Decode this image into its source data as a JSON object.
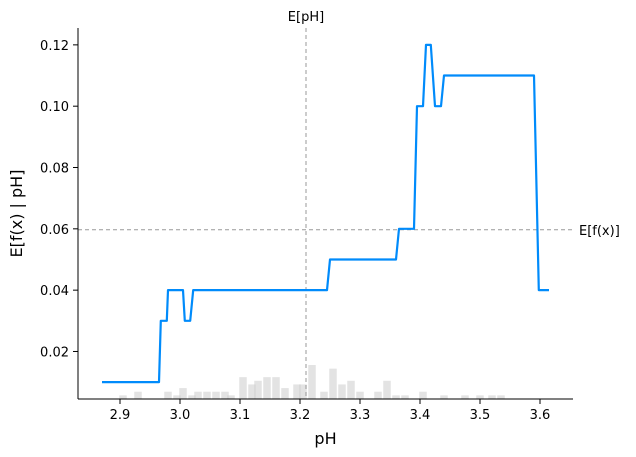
{
  "chart_data": {
    "type": "line",
    "title": "",
    "xlabel": "pH",
    "ylabel": "E[f(x) | pH]",
    "xlim": [
      2.83,
      3.655
    ],
    "ylim": [
      0.0045,
      0.1255
    ],
    "x_ticks": [
      2.9,
      3.0,
      3.1,
      3.2,
      3.3,
      3.4,
      3.5,
      3.6
    ],
    "x_tick_labels": [
      "2.9",
      "3.0",
      "3.1",
      "3.2",
      "3.3",
      "3.4",
      "3.5",
      "3.6"
    ],
    "y_ticks": [
      0.02,
      0.04,
      0.06,
      0.08,
      0.1,
      0.12
    ],
    "y_tick_labels": [
      "0.02",
      "0.04",
      "0.06",
      "0.08",
      "0.10",
      "0.12"
    ],
    "grid": false,
    "line_color": "#008bfb",
    "reference_color": "#999999",
    "histogram_color": "#cccccc",
    "series": [
      {
        "x": [
          2.87,
          2.965,
          2.968,
          2.978,
          2.98,
          2.99,
          3.005,
          3.008,
          3.017,
          3.022,
          3.03,
          3.04,
          3.245,
          3.25,
          3.32,
          3.36,
          3.365,
          3.37,
          3.39,
          3.395,
          3.405,
          3.41,
          3.418,
          3.425,
          3.435,
          3.44,
          3.45,
          3.59,
          3.598,
          3.605,
          3.615
        ],
        "y": [
          0.01,
          0.01,
          0.03,
          0.03,
          0.04,
          0.04,
          0.04,
          0.03,
          0.03,
          0.04,
          0.04,
          0.04,
          0.04,
          0.05,
          0.05,
          0.05,
          0.06,
          0.06,
          0.06,
          0.1,
          0.1,
          0.12,
          0.12,
          0.1,
          0.1,
          0.11,
          0.11,
          0.11,
          0.04,
          0.04,
          0.04
        ]
      }
    ],
    "reference_lines": [
      {
        "orientation": "vertical",
        "value": 3.21,
        "label": "E[pH]"
      },
      {
        "orientation": "horizontal",
        "value": 0.0597,
        "label": "E[f(x)]"
      }
    ],
    "histogram": {
      "bin_width": 0.0125,
      "bins": [
        [
          2.905,
          0.3
        ],
        [
          2.93,
          0.6
        ],
        [
          2.98,
          0.6
        ],
        [
          2.995,
          0.3
        ],
        [
          3.005,
          0.9
        ],
        [
          3.02,
          0.3
        ],
        [
          3.03,
          0.6
        ],
        [
          3.045,
          0.6
        ],
        [
          3.06,
          0.6
        ],
        [
          3.075,
          0.6
        ],
        [
          3.085,
          0.3
        ],
        [
          3.105,
          1.8
        ],
        [
          3.12,
          1.2
        ],
        [
          3.13,
          1.5
        ],
        [
          3.145,
          1.8
        ],
        [
          3.16,
          1.8
        ],
        [
          3.175,
          0.9
        ],
        [
          3.195,
          1.2
        ],
        [
          3.205,
          1.2
        ],
        [
          3.22,
          2.8
        ],
        [
          3.24,
          0.6
        ],
        [
          3.255,
          2.5
        ],
        [
          3.27,
          1.2
        ],
        [
          3.285,
          1.5
        ],
        [
          3.3,
          0.6
        ],
        [
          3.33,
          0.6
        ],
        [
          3.345,
          1.5
        ],
        [
          3.36,
          0.3
        ],
        [
          3.375,
          0.3
        ],
        [
          3.405,
          0.6
        ],
        [
          3.44,
          0.3
        ],
        [
          3.475,
          0.3
        ],
        [
          3.5,
          0.3
        ],
        [
          3.52,
          0.3
        ],
        [
          3.535,
          0.3
        ]
      ]
    }
  }
}
